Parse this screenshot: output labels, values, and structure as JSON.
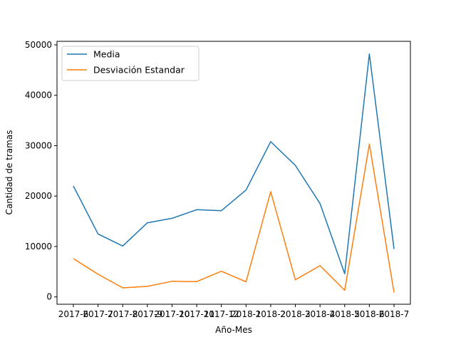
{
  "chart_data": {
    "type": "line",
    "xlabel": "Año-Mes",
    "ylabel": "Cantidad de tramas",
    "categories": [
      "2017-6",
      "2017-7",
      "2017-8",
      "2017-9",
      "2017-10",
      "2017-11",
      "2017-12",
      "2018-1",
      "2018-2",
      "2018-3",
      "2018-4",
      "2018-5",
      "2018-6",
      "2018-7"
    ],
    "yticks": [
      0,
      10000,
      20000,
      30000,
      40000,
      50000
    ],
    "ylim": [
      -1450,
      50700
    ],
    "grid": false,
    "legend_position": "top-left",
    "series": [
      {
        "name": "Media",
        "color": "#1f77b4",
        "values": [
          22000,
          12500,
          10100,
          14700,
          15600,
          17300,
          17100,
          21200,
          30800,
          26100,
          18500,
          4600,
          48200,
          9500
        ]
      },
      {
        "name": "Desviación Estandar",
        "color": "#ff7f0e",
        "values": [
          7600,
          4500,
          1800,
          2100,
          3100,
          3050,
          5100,
          3000,
          20900,
          3400,
          6200,
          1300,
          30300,
          900
        ]
      }
    ]
  }
}
